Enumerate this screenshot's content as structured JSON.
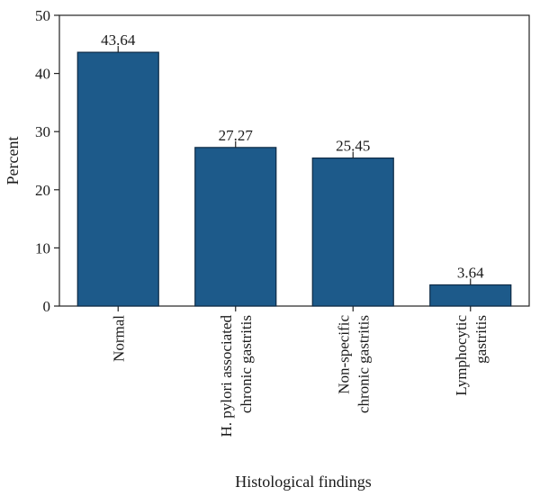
{
  "chart_data": {
    "type": "bar",
    "title": "",
    "xlabel": "Histological findings",
    "ylabel": "Percent",
    "ylim": [
      0,
      50
    ],
    "yticks": [
      0,
      10,
      20,
      30,
      40,
      50
    ],
    "grid": false,
    "legend": "none",
    "categories": [
      [
        "Normal"
      ],
      [
        "H. pylori associated",
        "chronic gastritis"
      ],
      [
        "Non-specific",
        "chronic gastritis"
      ],
      [
        "Lymphocytic",
        "gastritis"
      ]
    ],
    "values": [
      43.64,
      27.27,
      25.45,
      3.64
    ],
    "value_labels": [
      "43.64",
      "27.27",
      "25.45",
      "3.64"
    ],
    "bar_color": "#1d5a8a",
    "bar_edge_color": "#0d2a45"
  }
}
